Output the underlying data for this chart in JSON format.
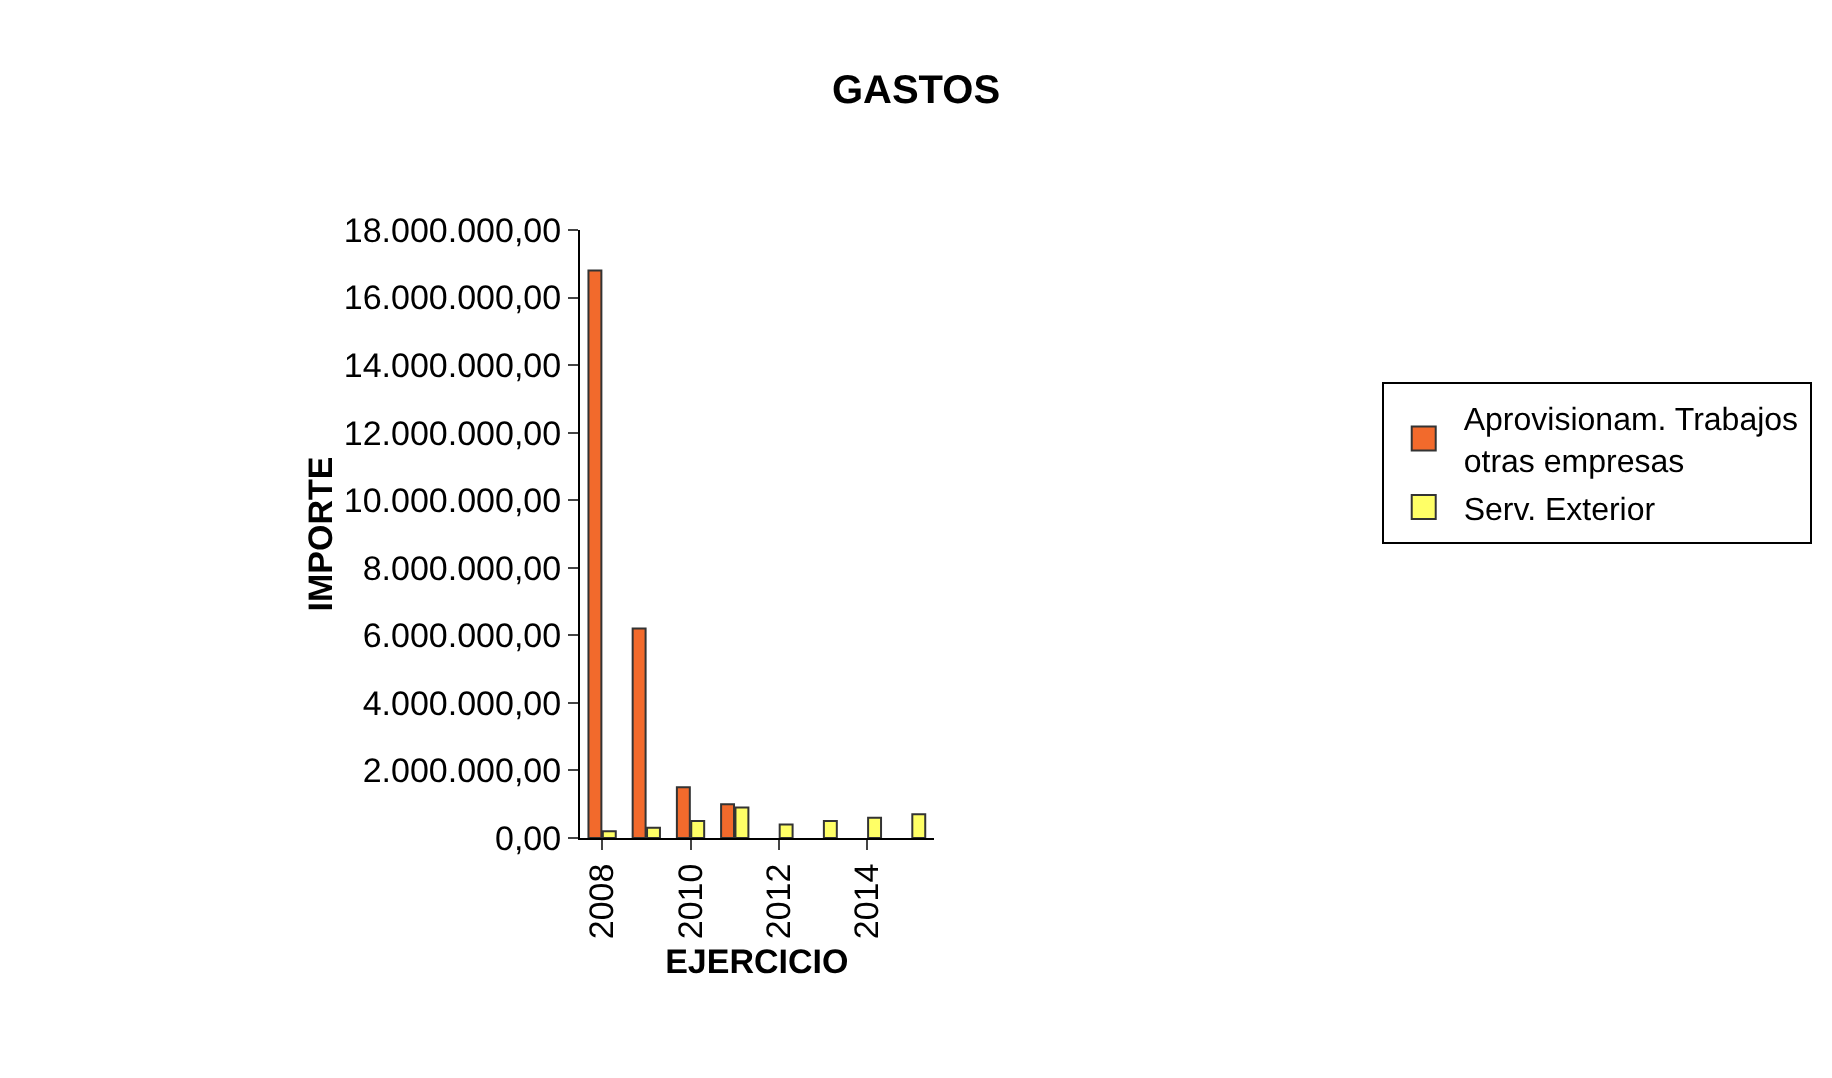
{
  "chart_data": {
    "type": "bar",
    "title": "GASTOS",
    "xlabel": "EJERCICIO",
    "ylabel": "IMPORTE",
    "categories": [
      "2008",
      null,
      "2010",
      null,
      "2012",
      null,
      "2014",
      null
    ],
    "series": [
      {
        "name": "Aprovisionam. Trabajos otras empresas",
        "color": "#f26a2c",
        "values": [
          16800000,
          6200000,
          1500000,
          1000000,
          null,
          null,
          null,
          null
        ]
      },
      {
        "name": "Serv. Exterior",
        "color": "#ffff66",
        "values": [
          200000,
          300000,
          500000,
          900000,
          400000,
          500000,
          600000,
          700000
        ]
      }
    ],
    "ylim": [
      0,
      18000000
    ],
    "yticks": [
      {
        "value": 0,
        "label": "0,00"
      },
      {
        "value": 2000000,
        "label": "2.000.000,00"
      },
      {
        "value": 4000000,
        "label": "4.000.000,00"
      },
      {
        "value": 6000000,
        "label": "6.000.000,00"
      },
      {
        "value": 8000000,
        "label": "8.000.000,00"
      },
      {
        "value": 10000000,
        "label": "10.000.000,00"
      },
      {
        "value": 12000000,
        "label": "12.000.000,00"
      },
      {
        "value": 14000000,
        "label": "14.000.000,00"
      },
      {
        "value": 16000000,
        "label": "16.000.000,00"
      },
      {
        "value": 18000000,
        "label": "18.000.000,00"
      }
    ],
    "grid": false,
    "legend": "right"
  }
}
